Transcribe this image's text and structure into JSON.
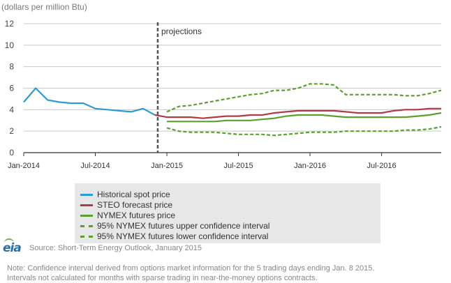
{
  "chart_data": {
    "type": "line",
    "unit_label": "(dollars per million Btu)",
    "annotation": "projections",
    "ylim": [
      0,
      12
    ],
    "yticks": [
      0,
      2,
      4,
      6,
      8,
      10,
      12
    ],
    "xtick_labels": [
      "Jan-2014",
      "Jul-2014",
      "Jan-2015",
      "Jul-2015",
      "Jan-2016",
      "Jul-2016"
    ],
    "x_start": "2014-01",
    "x_end": "2016-12",
    "projection_start": "2014-12",
    "grid": true,
    "legend_position": "bottom",
    "series": [
      {
        "name": "Historical spot price",
        "color": "#2b9bd6",
        "dashed": false,
        "x": [
          "2014-01",
          "2014-02",
          "2014-03",
          "2014-04",
          "2014-05",
          "2014-06",
          "2014-07",
          "2014-08",
          "2014-09",
          "2014-10",
          "2014-11",
          "2014-12"
        ],
        "values": [
          4.7,
          6.0,
          4.9,
          4.7,
          4.6,
          4.6,
          4.1,
          4.0,
          3.9,
          3.8,
          4.1,
          3.5
        ]
      },
      {
        "name": "STEO forecast price",
        "color": "#b23a48",
        "dashed": false,
        "x": [
          "2014-12",
          "2015-01",
          "2015-02",
          "2015-03",
          "2015-04",
          "2015-05",
          "2015-06",
          "2015-07",
          "2015-08",
          "2015-09",
          "2015-10",
          "2015-11",
          "2015-12",
          "2016-01",
          "2016-02",
          "2016-03",
          "2016-04",
          "2016-05",
          "2016-06",
          "2016-07",
          "2016-08",
          "2016-09",
          "2016-10",
          "2016-11",
          "2016-12"
        ],
        "values": [
          3.5,
          3.3,
          3.3,
          3.3,
          3.2,
          3.3,
          3.4,
          3.4,
          3.5,
          3.5,
          3.7,
          3.8,
          3.9,
          3.9,
          3.9,
          3.9,
          3.8,
          3.7,
          3.7,
          3.7,
          3.9,
          4.0,
          4.0,
          4.1,
          4.1
        ]
      },
      {
        "name": "NYMEX futures price",
        "color": "#5aa02c",
        "dashed": false,
        "x": [
          "2015-01",
          "2015-02",
          "2015-03",
          "2015-04",
          "2015-05",
          "2015-06",
          "2015-07",
          "2015-08",
          "2015-09",
          "2015-10",
          "2015-11",
          "2015-12",
          "2016-01",
          "2016-02",
          "2016-03",
          "2016-04",
          "2016-05",
          "2016-06",
          "2016-07",
          "2016-08",
          "2016-09",
          "2016-10",
          "2016-11",
          "2016-12"
        ],
        "values": [
          2.9,
          2.9,
          2.9,
          2.9,
          2.9,
          3.0,
          3.0,
          3.0,
          3.1,
          3.2,
          3.4,
          3.5,
          3.5,
          3.5,
          3.4,
          3.3,
          3.3,
          3.3,
          3.3,
          3.3,
          3.3,
          3.4,
          3.5,
          3.7
        ]
      },
      {
        "name": "95% NYMEX futures upper confidence interval",
        "color": "#5aa02c",
        "dashed": true,
        "x": [
          "2015-01",
          "2015-02",
          "2015-03",
          "2015-04",
          "2015-05",
          "2015-06",
          "2015-07",
          "2015-08",
          "2015-09",
          "2015-10",
          "2015-11",
          "2015-12",
          "2016-01",
          "2016-02",
          "2016-03",
          "2016-04",
          "2016-05",
          "2016-06",
          "2016-07",
          "2016-08",
          "2016-09",
          "2016-10",
          "2016-11",
          "2016-12"
        ],
        "values": [
          3.8,
          4.3,
          4.4,
          4.6,
          4.8,
          5.0,
          5.2,
          5.4,
          5.5,
          5.8,
          5.8,
          6.0,
          6.4,
          6.4,
          6.3,
          5.4,
          5.4,
          5.4,
          5.4,
          5.4,
          5.3,
          5.3,
          5.5,
          5.8
        ]
      },
      {
        "name": "95% NYMEX futures lower confidence interval",
        "color": "#5aa02c",
        "dashed": true,
        "x": [
          "2015-01",
          "2015-02",
          "2015-03",
          "2015-04",
          "2015-05",
          "2015-06",
          "2015-07",
          "2015-08",
          "2015-09",
          "2015-10",
          "2015-11",
          "2015-12",
          "2016-01",
          "2016-02",
          "2016-03",
          "2016-04",
          "2016-05",
          "2016-06",
          "2016-07",
          "2016-08",
          "2016-09",
          "2016-10",
          "2016-11",
          "2016-12"
        ],
        "values": [
          2.3,
          2.0,
          1.9,
          1.9,
          1.9,
          1.8,
          1.7,
          1.7,
          1.7,
          1.6,
          1.7,
          1.8,
          1.9,
          1.9,
          1.9,
          2.0,
          2.0,
          2.0,
          2.0,
          2.0,
          2.1,
          2.1,
          2.2,
          2.4
        ]
      }
    ]
  },
  "footer": {
    "logo_text": "eia",
    "source": "Source: Short-Term Energy Outlook, January 2015",
    "note_line1": "Note: Confidence interval derived from options market information for the 5 trading days ending Jan. 8 2015.",
    "note_line2": "Intervals not calculated for months with sparse trading in near-the-money options contracts."
  }
}
